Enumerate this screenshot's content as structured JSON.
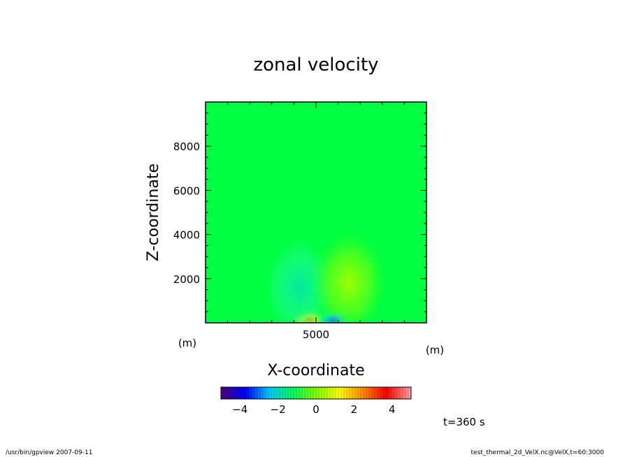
{
  "chart_data": {
    "type": "heatmap",
    "title": "zonal velocity",
    "xlabel": "X-coordinate",
    "ylabel": "Z-coordinate",
    "x_unit": "(m)",
    "y_unit": "(m)",
    "xlim": [
      0,
      10000
    ],
    "ylim": [
      0,
      10000
    ],
    "xticks": [
      5000
    ],
    "yticks": [
      2000,
      4000,
      6000,
      8000
    ],
    "background_value": 0,
    "features": [
      {
        "x": 4700,
        "z": 100,
        "value": 3.5
      },
      {
        "x": 5800,
        "z": 100,
        "value": -3.5
      },
      {
        "x": 4250,
        "z": 1600,
        "value": -0.8
      },
      {
        "x": 6500,
        "z": 1800,
        "value": 0.8
      }
    ],
    "colorbar": {
      "min": -5,
      "max": 5,
      "ticks": [
        -4,
        -2,
        0,
        2,
        4
      ],
      "colormap": "rainbow",
      "colors": [
        "#4b0082",
        "#0000ff",
        "#00c8ff",
        "#00ff64",
        "#7fff00",
        "#ffff00",
        "#ff8c00",
        "#ff0000",
        "#ff9999"
      ]
    },
    "time_label": "t=360 s"
  },
  "footer": {
    "left": "/usr/bin/gpview   2007-09-11",
    "right": "test_thermal_2d_VelX.nc@VelX,t=60:3000"
  }
}
